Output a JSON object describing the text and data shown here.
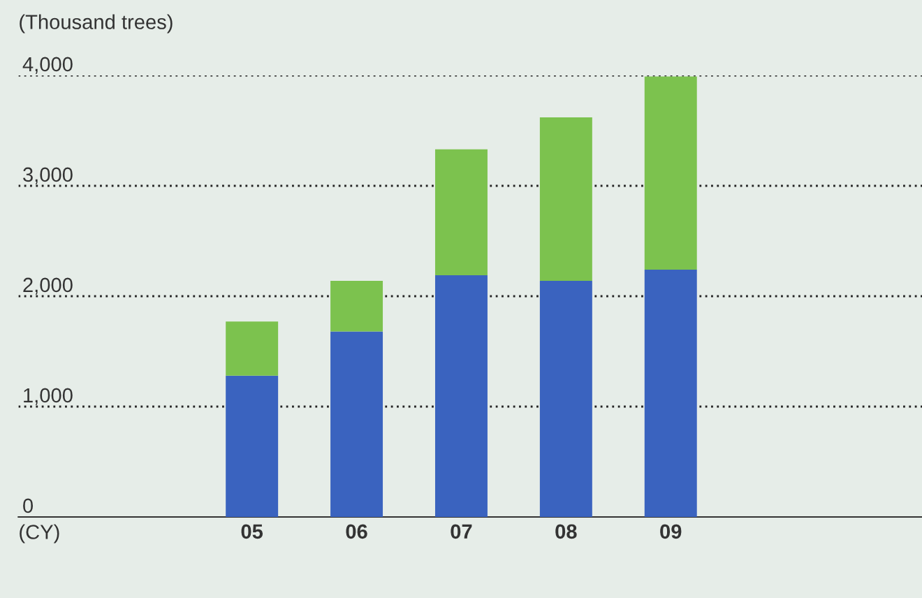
{
  "chart_data": {
    "type": "bar",
    "stacked": true,
    "ylabel": "(Thousand trees)",
    "xlabel": "(CY)",
    "categories": [
      "05",
      "06",
      "07",
      "08",
      "09"
    ],
    "series": [
      {
        "color": "#3a63bf",
        "values": [
          1280,
          1680,
          2190,
          2140,
          2240
        ]
      },
      {
        "color": "#7cc24e",
        "values": [
          490,
          460,
          1140,
          1480,
          1750
        ]
      }
    ],
    "ylim": [
      0,
      4000
    ],
    "yticks": [
      {
        "value": 0,
        "label": "0"
      },
      {
        "value": 1000,
        "label": "1,000"
      },
      {
        "value": 2000,
        "label": "2,000"
      },
      {
        "value": 3000,
        "label": "3,000"
      },
      {
        "value": 4000,
        "label": "4,000"
      }
    ],
    "grid": "y"
  }
}
